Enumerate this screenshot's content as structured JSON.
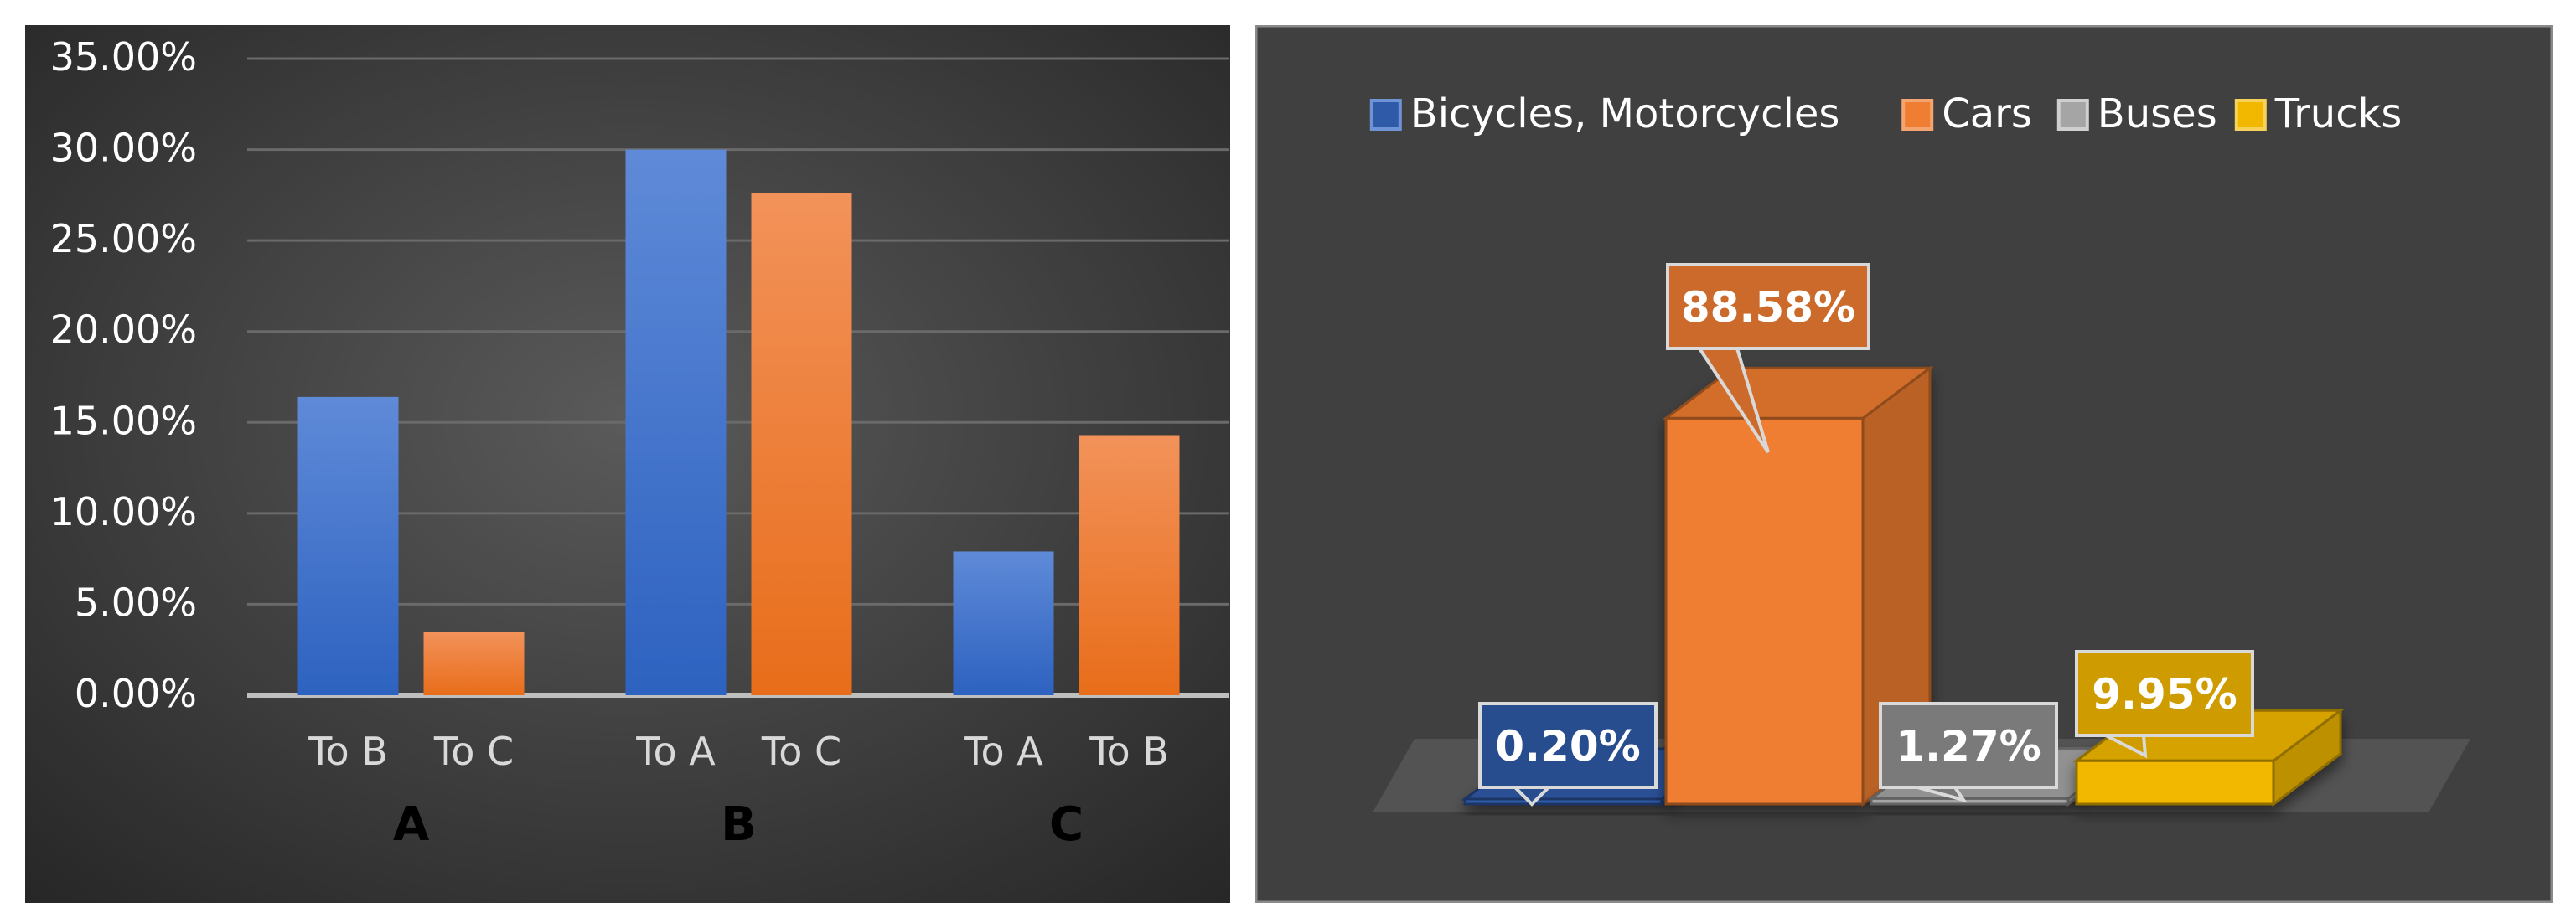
{
  "chart_data": [
    {
      "type": "bar",
      "groups": [
        {
          "name": "A",
          "categories": [
            "To B",
            "To C"
          ],
          "values": [
            16.4,
            3.5
          ]
        },
        {
          "name": "B",
          "categories": [
            "To A",
            "To C"
          ],
          "values": [
            30.0,
            27.6
          ]
        },
        {
          "name": "C",
          "categories": [
            "To A",
            "To B"
          ],
          "values": [
            7.9,
            14.3
          ]
        }
      ],
      "ylim": [
        0,
        35
      ],
      "yticks": [
        "0.00%",
        "5.00%",
        "10.00%",
        "15.00%",
        "20.00%",
        "25.00%",
        "30.00%",
        "35.00%"
      ],
      "grid": true,
      "colors": [
        "#4f81d6",
        "#f4833a"
      ]
    },
    {
      "type": "bar",
      "style": "3d-column",
      "categories": [
        "Bicycles, Motorcycles",
        "Cars",
        "Buses",
        "Trucks"
      ],
      "values": [
        0.2,
        88.58,
        1.27,
        9.95
      ],
      "data_labels": [
        "0.20%",
        "88.58%",
        "1.27%",
        "9.95%"
      ],
      "legend": [
        "Bicycles, Motorcycles",
        "Cars",
        "Buses",
        "Trucks"
      ],
      "legend_position": "top",
      "colors": [
        "#2f5aa8",
        "#ef7d32",
        "#a5a5a5",
        "#f2b800"
      ]
    }
  ]
}
